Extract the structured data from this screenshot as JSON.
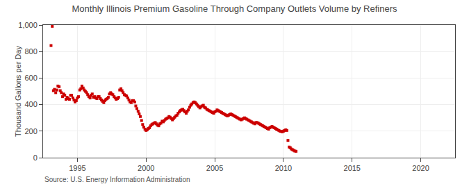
{
  "chart_data": {
    "type": "scatter",
    "title": "Monthly Illinois Premium Gasoline Through Company Outlets Volume by Refiners",
    "ylabel": "Thousand Gallons per Day",
    "annotations": [
      "Source: U.S. Energy Information Administration"
    ],
    "color": "#cc0000",
    "marker": "square",
    "grid": true,
    "xlim": [
      1992.5,
      2022.5
    ],
    "xticks": [
      1995,
      2000,
      2005,
      2010,
      2015,
      2020
    ],
    "ylim": [
      0,
      1000
    ],
    "yticks": [
      0,
      200,
      400,
      600,
      800,
      {
        "value": 1000,
        "label": "1,000"
      }
    ],
    "x": [
      1993.08,
      1993.17,
      1993.25,
      1993.33,
      1993.42,
      1993.5,
      1993.58,
      1993.67,
      1993.75,
      1993.83,
      1993.92,
      1994.0,
      1994.08,
      1994.17,
      1994.25,
      1994.33,
      1994.42,
      1994.5,
      1994.58,
      1994.67,
      1994.75,
      1994.83,
      1994.92,
      1995.0,
      1995.08,
      1995.17,
      1995.25,
      1995.33,
      1995.42,
      1995.5,
      1995.58,
      1995.67,
      1995.75,
      1995.83,
      1995.92,
      1996.0,
      1996.08,
      1996.17,
      1996.25,
      1996.33,
      1996.42,
      1996.5,
      1996.58,
      1996.67,
      1996.75,
      1996.83,
      1996.92,
      1997.0,
      1997.08,
      1997.17,
      1997.25,
      1997.33,
      1997.42,
      1997.5,
      1997.58,
      1997.67,
      1997.75,
      1997.83,
      1997.92,
      1998.0,
      1998.08,
      1998.17,
      1998.25,
      1998.33,
      1998.42,
      1998.5,
      1998.58,
      1998.67,
      1998.75,
      1998.83,
      1998.92,
      1999.0,
      1999.08,
      1999.17,
      1999.25,
      1999.33,
      1999.42,
      1999.5,
      1999.58,
      1999.67,
      1999.75,
      1999.83,
      1999.92,
      2000.0,
      2000.08,
      2000.17,
      2000.25,
      2000.33,
      2000.42,
      2000.5,
      2000.58,
      2000.67,
      2000.75,
      2000.83,
      2000.92,
      2001.0,
      2001.08,
      2001.17,
      2001.25,
      2001.33,
      2001.42,
      2001.5,
      2001.58,
      2001.67,
      2001.75,
      2001.83,
      2001.92,
      2002.0,
      2002.08,
      2002.17,
      2002.25,
      2002.33,
      2002.42,
      2002.5,
      2002.58,
      2002.67,
      2002.75,
      2002.83,
      2002.92,
      2003.0,
      2003.08,
      2003.17,
      2003.25,
      2003.33,
      2003.42,
      2003.5,
      2003.58,
      2003.67,
      2003.75,
      2003.83,
      2003.92,
      2004.0,
      2004.08,
      2004.17,
      2004.25,
      2004.33,
      2004.42,
      2004.5,
      2004.58,
      2004.67,
      2004.75,
      2004.83,
      2004.92,
      2005.0,
      2005.08,
      2005.17,
      2005.25,
      2005.33,
      2005.42,
      2005.5,
      2005.58,
      2005.67,
      2005.75,
      2005.83,
      2005.92,
      2006.0,
      2006.08,
      2006.17,
      2006.25,
      2006.33,
      2006.42,
      2006.5,
      2006.58,
      2006.67,
      2006.75,
      2006.83,
      2006.92,
      2007.0,
      2007.08,
      2007.17,
      2007.25,
      2007.33,
      2007.42,
      2007.5,
      2007.58,
      2007.67,
      2007.75,
      2007.83,
      2007.92,
      2008.0,
      2008.08,
      2008.17,
      2008.25,
      2008.33,
      2008.42,
      2008.5,
      2008.58,
      2008.67,
      2008.75,
      2008.83,
      2008.92,
      2009.0,
      2009.08,
      2009.17,
      2009.25,
      2009.33,
      2009.42,
      2009.5,
      2009.58,
      2009.67,
      2009.75,
      2009.83,
      2009.92,
      2010.0,
      2010.08,
      2010.17,
      2010.25,
      2010.33,
      2010.42,
      2010.5,
      2010.58,
      2010.67,
      2010.75,
      2010.83,
      2010.92
    ],
    "values": [
      845,
      990,
      505,
      515,
      490,
      510,
      540,
      535,
      505,
      490,
      460,
      480,
      470,
      440,
      455,
      445,
      440,
      470,
      470,
      450,
      435,
      420,
      430,
      450,
      460,
      510,
      520,
      540,
      525,
      510,
      500,
      490,
      475,
      460,
      450,
      470,
      480,
      455,
      460,
      450,
      445,
      460,
      460,
      445,
      435,
      425,
      415,
      430,
      440,
      445,
      455,
      480,
      490,
      480,
      475,
      460,
      450,
      440,
      445,
      455,
      510,
      520,
      505,
      490,
      475,
      470,
      465,
      450,
      435,
      420,
      415,
      430,
      430,
      420,
      390,
      370,
      350,
      330,
      310,
      280,
      250,
      230,
      215,
      205,
      210,
      220,
      225,
      240,
      250,
      255,
      260,
      265,
      255,
      245,
      240,
      255,
      260,
      275,
      270,
      280,
      290,
      295,
      300,
      310,
      305,
      295,
      285,
      295,
      305,
      315,
      320,
      335,
      345,
      355,
      360,
      365,
      355,
      345,
      335,
      350,
      360,
      380,
      395,
      405,
      415,
      420,
      415,
      405,
      395,
      385,
      375,
      385,
      390,
      395,
      380,
      375,
      365,
      360,
      355,
      350,
      345,
      340,
      335,
      345,
      350,
      360,
      355,
      350,
      345,
      340,
      335,
      330,
      325,
      320,
      315,
      320,
      325,
      330,
      325,
      320,
      315,
      310,
      305,
      300,
      295,
      290,
      285,
      290,
      295,
      300,
      295,
      290,
      285,
      280,
      275,
      270,
      265,
      260,
      255,
      265,
      265,
      260,
      255,
      250,
      245,
      240,
      235,
      230,
      225,
      220,
      215,
      225,
      230,
      235,
      230,
      225,
      220,
      215,
      210,
      205,
      200,
      198,
      195,
      200,
      205,
      210,
      205,
      130,
      80,
      75,
      65,
      60,
      55,
      50,
      48
    ]
  }
}
